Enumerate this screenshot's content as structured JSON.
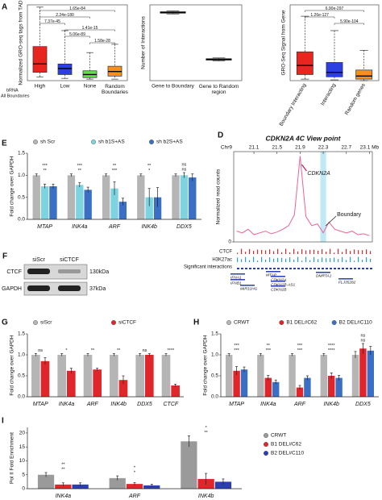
{
  "blot": {
    "panel": "F",
    "lanes": [
      "siScr",
      "siCTCF"
    ],
    "rows": [
      {
        "name": "CTCF",
        "size": "130kDa"
      },
      {
        "name": "GAPDH",
        "size": "37kDa"
      }
    ]
  },
  "chart_data": [
    {
      "type": "box",
      "panel": "A",
      "y_label": "Normalized GRO-seq tags from TAD",
      "group_label": "bRNA",
      "x_label": "All Boundaries",
      "categories": [
        "High",
        "Low",
        "None",
        "Random Boundaries"
      ],
      "colors": [
        "#e8251f",
        "#2c3fe0",
        "#5ee04a",
        "#f5901e"
      ],
      "values": [
        [
          5,
          11,
          22,
          45,
          97
        ],
        [
          3,
          8,
          16,
          22,
          66
        ],
        [
          2,
          4,
          8,
          13,
          37
        ],
        [
          2,
          6,
          12,
          19,
          48
        ]
      ],
      "ylim": [
        0,
        100
      ],
      "comparisons": [
        {
          "groups": [
            0,
            3
          ],
          "label": "1.65e-84"
        },
        {
          "groups": [
            0,
            2
          ],
          "label": "2.24e-180"
        },
        {
          "groups": [
            0,
            1
          ],
          "label": "7.37e-45"
        },
        {
          "groups": [
            1,
            3
          ],
          "label": "1.41e-15"
        },
        {
          "groups": [
            1,
            2
          ],
          "label": "5.06e-89"
        },
        {
          "groups": [
            2,
            3
          ],
          "label": "1.58e-28"
        }
      ],
      "frame": true,
      "wrap_labels": true
    },
    {
      "type": "box",
      "y_label": "Number of Interactions",
      "categories": [
        "Gene to Boundary",
        "Gene to Random region"
      ],
      "colors": [
        "#ffffff",
        "#ffffff"
      ],
      "values": [
        [
          88,
          89,
          90,
          91,
          92
        ],
        [
          26,
          27,
          28,
          29,
          30
        ]
      ],
      "ylim": [
        0,
        100
      ],
      "frame": true,
      "wrap_labels": true
    },
    {
      "type": "box",
      "y_label": "GRO-Seq Signal from Gene",
      "categories": [
        "Boundary Interacting",
        "Interacting",
        "Random genes"
      ],
      "colors": [
        "#e8251f",
        "#2c3fe0",
        "#f5901e"
      ],
      "values": [
        [
          2,
          8,
          20,
          38,
          85
        ],
        [
          1,
          5,
          11,
          24,
          66
        ],
        [
          0,
          2,
          6,
          14,
          40
        ]
      ],
      "ylim": [
        0,
        100
      ],
      "comparisons": [
        {
          "groups": [
            0,
            2
          ],
          "label": "6.90e-297"
        },
        {
          "groups": [
            0,
            1
          ],
          "label": "1.26e-127"
        },
        {
          "groups": [
            1,
            2
          ],
          "label": "5.90e-104"
        }
      ],
      "frame": true,
      "rotate_labels": true
    },
    {
      "type": "bar",
      "panel": "E",
      "y_label": "Fold change over GAPDH",
      "categories": [
        "MTAP",
        "INK4a",
        "ARF",
        "INK4b",
        "DDX5"
      ],
      "series": [
        {
          "name": "sh Scr",
          "color": "#b5b5b5",
          "values": [
            1,
            1,
            1,
            1,
            1
          ],
          "errors": [
            0.03,
            0.03,
            0.03,
            0.03,
            0.03
          ]
        },
        {
          "name": "sh b1S+AS",
          "color": "#7dd3e0",
          "values": [
            0.75,
            0.78,
            0.7,
            0.5,
            1.0
          ],
          "errors": [
            0.05,
            0.05,
            0.15,
            0.2,
            0.06
          ]
        },
        {
          "name": "sh b2S+AS",
          "color": "#3a6fc4",
          "values": [
            0.75,
            0.67,
            0.4,
            0.5,
            0.95
          ],
          "errors": [
            0.05,
            0.06,
            0.08,
            0.22,
            0.08
          ]
        }
      ],
      "ylim": [
        0,
        1.5
      ],
      "yticks": [
        {
          "value": 0,
          "label": "0.0"
        },
        0.5,
        {
          "value": 1,
          "label": "1.0"
        },
        1.5
      ],
      "significance": [
        [
          "**",
          "***"
        ],
        [
          "**",
          "***"
        ],
        [
          "***",
          "**"
        ],
        [
          "*",
          "**"
        ],
        [
          "ns",
          "ns"
        ]
      ],
      "legend": "top"
    },
    {
      "type": "line",
      "panel": "D",
      "title": "CDKN2A 4C View point",
      "x_label": "Chr9",
      "y_label": "Normalized read counts",
      "x": [
        20.8,
        20.9,
        21.0,
        21.1,
        21.2,
        21.3,
        21.4,
        21.5,
        21.6,
        21.7,
        21.8,
        21.9,
        22.0,
        22.1,
        22.2,
        22.3,
        22.4,
        22.5,
        22.6,
        22.7,
        22.8,
        22.9,
        23.0,
        23.1
      ],
      "values": [
        12,
        10,
        14,
        8,
        10,
        12,
        9,
        11,
        14,
        18,
        30,
        95,
        28,
        18,
        20,
        10,
        22,
        14,
        12,
        10,
        12,
        8,
        9,
        7
      ],
      "color": "#f06292",
      "xlim": [
        20.75,
        23.15
      ],
      "xticks": [
        21.1,
        21.5,
        21.9,
        22.3,
        22.7,
        {
          "value": 23.1,
          "label": "23.1 Mb"
        }
      ],
      "ylim": [
        0,
        100
      ],
      "yticks": [
        0
      ],
      "highlight": [
        22.25,
        22.35
      ],
      "annotations": [
        {
          "text": "CDKN2A",
          "x": 21.9
        },
        {
          "text": "Boundary",
          "x": 22.3
        }
      ],
      "tracks": [
        "CTCF",
        "H3K27ac",
        "Significant interactions"
      ],
      "genes": [
        "IFNA1",
        "IFNB1",
        "MIR31HG",
        "MTAP",
        "CDKN2A",
        "CDKN2B-AS1",
        "CDKN2B",
        "DMRTA1",
        "FLJ35282"
      ]
    },
    {
      "type": "bar",
      "panel": "G",
      "y_label": "Fold change over GAPDH",
      "categories": [
        "MTAP",
        "INK4a",
        "ARF",
        "INK4b",
        "DDX5",
        "CTCF"
      ],
      "series": [
        {
          "name": "siScr",
          "color": "#b5b5b5",
          "values": [
            1,
            1,
            1,
            1,
            1,
            1
          ],
          "errors": [
            0.03,
            0.03,
            0.03,
            0.03,
            0.03,
            0.03
          ]
        },
        {
          "name": "siCTCF",
          "color": "#e0262a",
          "values": [
            0.85,
            0.62,
            0.65,
            0.4,
            1.0,
            0.27
          ],
          "errors": [
            0.08,
            0.06,
            0.03,
            0.1,
            0.03,
            0.03
          ]
        }
      ],
      "ylim": [
        0,
        1.5
      ],
      "yticks": [
        {
          "value": 0,
          "label": "0.0"
        },
        0.5,
        {
          "value": 1,
          "label": "1.0"
        },
        1.5
      ],
      "significance": [
        [
          "ns"
        ],
        [
          "*"
        ],
        [
          "**"
        ],
        [
          "**"
        ],
        [
          "ns"
        ],
        [
          "****"
        ]
      ],
      "legend": "top"
    },
    {
      "type": "bar",
      "panel": "H",
      "y_label": "Fold change over GAPDH",
      "categories": [
        "MTAP",
        "INK4a",
        "ARF",
        "INK4b",
        "DDX5"
      ],
      "series": [
        {
          "name": "CRWT",
          "color": "#b5b5b5",
          "values": [
            1,
            1,
            1,
            1,
            1
          ],
          "errors": [
            0.03,
            0.03,
            0.03,
            0.03,
            0.08
          ]
        },
        {
          "name": "B1 DEL#C62",
          "color": "#e0262a",
          "values": [
            0.62,
            0.45,
            0.22,
            0.5,
            1.15
          ],
          "errors": [
            0.1,
            0.06,
            0.05,
            0.07,
            0.12
          ]
        },
        {
          "name": "B2 DEL#C110",
          "color": "#3a6fc4",
          "values": [
            0.65,
            0.35,
            0.45,
            0.45,
            1.1
          ],
          "errors": [
            0.06,
            0.05,
            0.05,
            0.06,
            0.1
          ]
        }
      ],
      "ylim": [
        0,
        1.5
      ],
      "yticks": [
        {
          "value": 0,
          "label": "0.0"
        },
        0.5,
        {
          "value": 1,
          "label": "1.0"
        },
        1.5
      ],
      "significance": [
        [
          "***",
          "***"
        ],
        [
          "***",
          "**"
        ],
        [
          "***",
          "***"
        ],
        [
          "****",
          "****"
        ],
        [
          "ns",
          "ns"
        ]
      ],
      "legend": "top"
    },
    {
      "type": "bar",
      "panel": "I",
      "y_label": "Pol II Fold Enrichment",
      "categories": [
        "INK4a",
        "ARF",
        "INK4b"
      ],
      "series": [
        {
          "name": "CRWT",
          "color": "#9a9a9a",
          "values": [
            5,
            3.8,
            17
          ],
          "errors": [
            0.8,
            0.8,
            2
          ]
        },
        {
          "name": "B1 DEL#C62",
          "color": "#e0262a",
          "values": [
            1.5,
            1.7,
            3.5
          ],
          "errors": [
            0.6,
            0.5,
            2
          ]
        },
        {
          "name": "B2 DEL#C110",
          "color": "#2c3fb0",
          "values": [
            1.5,
            1.2,
            2.5
          ],
          "errors": [
            0.6,
            0.4,
            1
          ]
        }
      ],
      "ylim": [
        0,
        22
      ],
      "yticks": [
        0,
        5,
        10,
        15,
        20
      ],
      "significance": [
        [
          "**",
          "**"
        ],
        [
          "*",
          "*"
        ],
        [
          "**",
          "*"
        ]
      ],
      "legend": "right"
    }
  ]
}
